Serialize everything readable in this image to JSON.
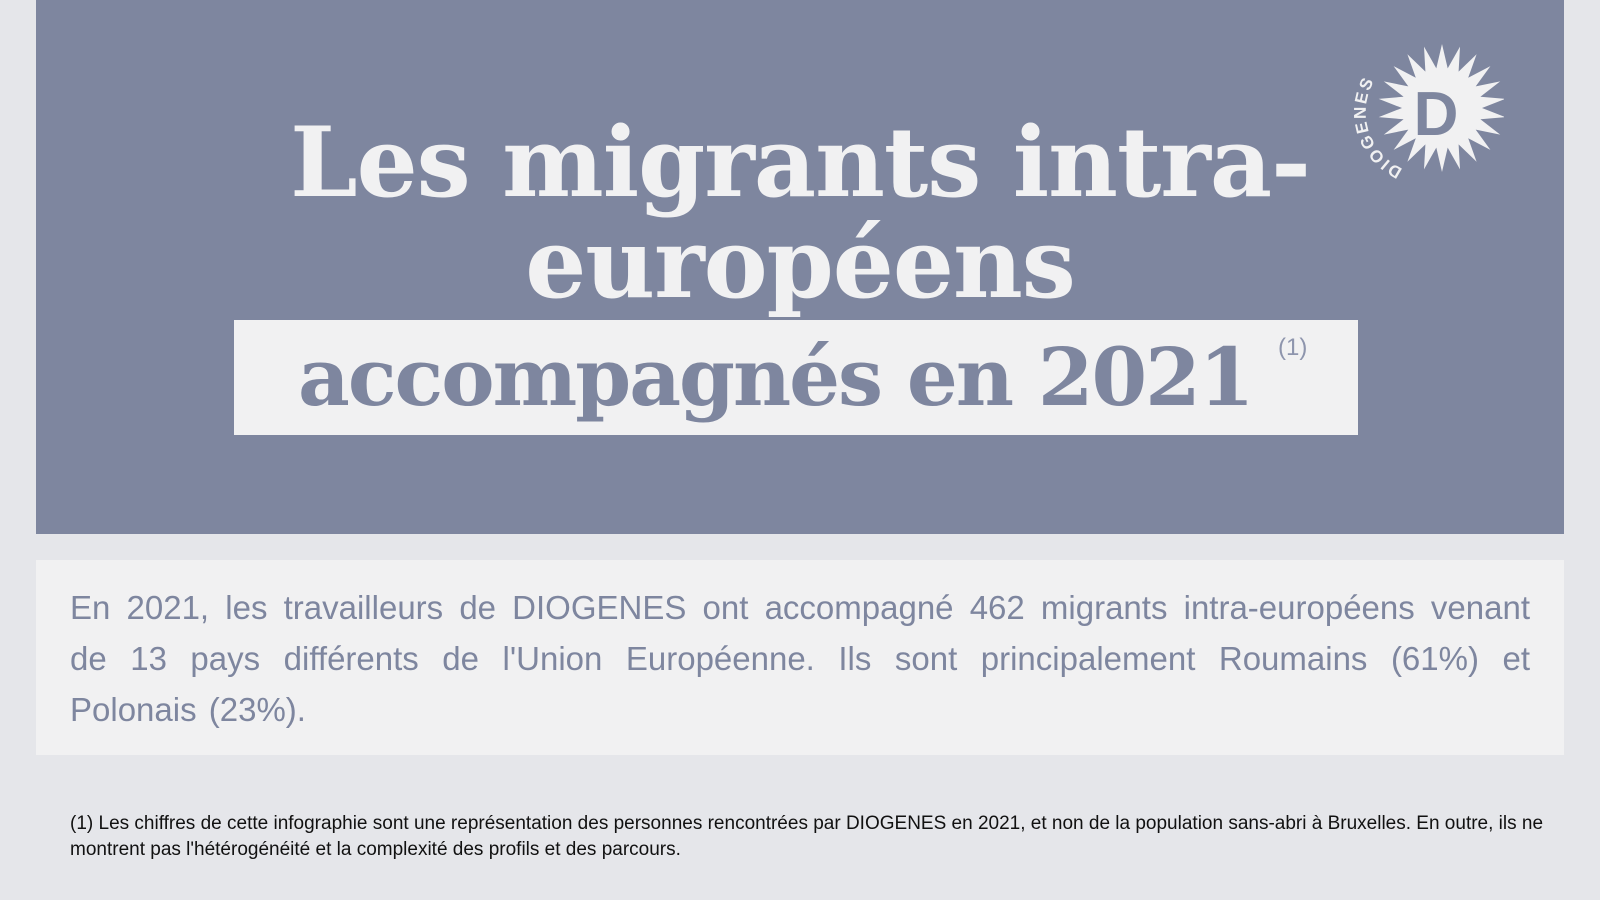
{
  "title": {
    "line1": "Les migrants intra-",
    "line2": "européens",
    "highlight": "accompagnés en 2021",
    "footnote_ref": "(1)"
  },
  "logo": {
    "text": "DIOGENES",
    "letter": "D",
    "icon": "diogenes-sunburst-logo"
  },
  "intro": {
    "text": "En 2021, les travailleurs de DIOGENES ont accompagné 462 migrants intra-européens venant de 13 pays différents de l'Union Européenne. Ils sont principalement Roumains (61%) et Polonais (23%)."
  },
  "footnote": {
    "text": "(1) Les chiffres de cette infographie sont une représentation des personnes rencontrées par DIOGENES en 2021, et non de la population sans-abri à Bruxelles. En outre, ils ne montrent pas l'hétérogénéité et la complexité des profils et des parcours."
  },
  "colors": {
    "hero_bg": "#7e869f",
    "light": "#f1f1f2",
    "page_bg": "#e5e6ea",
    "text_dark": "#111111"
  }
}
